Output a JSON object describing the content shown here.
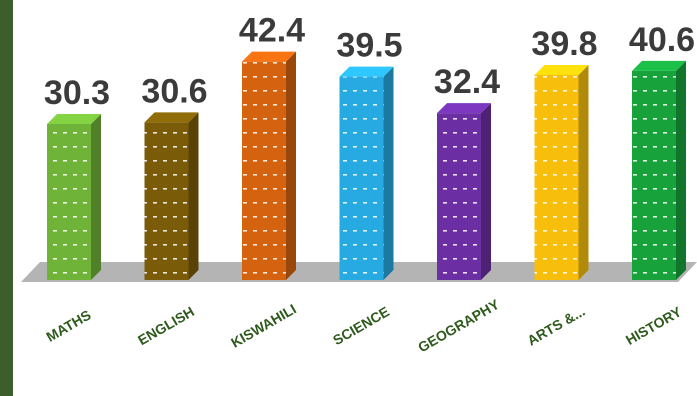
{
  "chart_data": {
    "type": "bar",
    "categories": [
      "MATHS",
      "ENGLISH",
      "KISWAHILI",
      "SCIENCE",
      "GEOGRAPHY",
      "ARTS &...",
      "HISTORY"
    ],
    "values": [
      30.3,
      30.6,
      42.4,
      39.5,
      32.4,
      39.8,
      40.6
    ],
    "value_labels": [
      "30.3",
      "30.6",
      "42.4",
      "39.5",
      "32.4",
      "39.8",
      "40.6"
    ],
    "colors": [
      "#6fb338",
      "#7a5c08",
      "#d4620e",
      "#27a9e1",
      "#6b2fa3",
      "#f7bf0c",
      "#18a23c"
    ],
    "style": "3d-column",
    "ylim": [
      0,
      44
    ]
  }
}
